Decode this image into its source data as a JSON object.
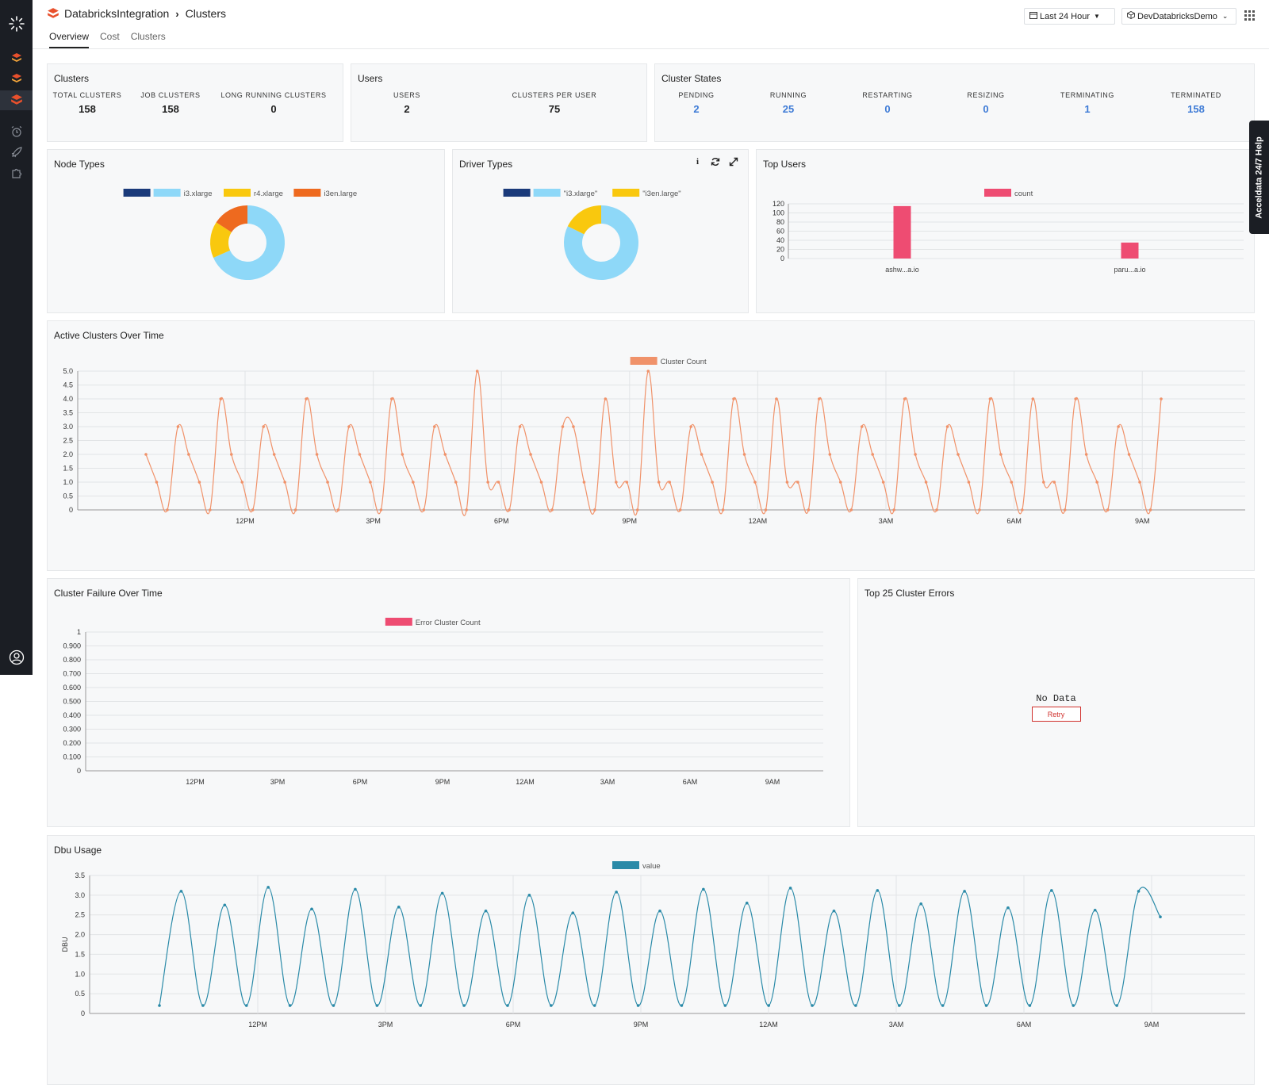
{
  "breadcrumb": {
    "app": "DatabricksIntegration",
    "page": "Clusters"
  },
  "tabs": [
    {
      "label": "Overview"
    },
    {
      "label": "Cost"
    },
    {
      "label": "Clusters"
    }
  ],
  "controls": {
    "time_range": "Last 24 Hour",
    "workspace": "DevDatabricksDemo"
  },
  "help_tab": "Acceldata 24/7 Help",
  "clusters_panel": {
    "title": "Clusters",
    "stats": [
      {
        "label": "TOTAL CLUSTERS",
        "value": "158"
      },
      {
        "label": "JOB CLUSTERS",
        "value": "158"
      },
      {
        "label": "LONG RUNNING CLUSTERS",
        "value": "0"
      }
    ]
  },
  "users_panel": {
    "title": "Users",
    "stats": [
      {
        "label": "USERS",
        "value": "2"
      },
      {
        "label": "CLUSTERS PER USER",
        "value": "75"
      }
    ]
  },
  "states_panel": {
    "title": "Cluster States",
    "stats": [
      {
        "label": "PENDING",
        "value": "2"
      },
      {
        "label": "RUNNING",
        "value": "25"
      },
      {
        "label": "RESTARTING",
        "value": "0"
      },
      {
        "label": "RESIZING",
        "value": "0"
      },
      {
        "label": "TERMINATING",
        "value": "1"
      },
      {
        "label": "TERMINATED",
        "value": "158"
      }
    ]
  },
  "colors": {
    "accent_red": "#e8502c",
    "blue_value": "#3e7bd6",
    "orange_line": "#f0926a",
    "pink": "#ee4c72",
    "teal": "#2a8aa8",
    "navy": "#1a3a7a",
    "light_blue": "#8ed8f8",
    "yellow": "#f9c80e",
    "orange": "#ee6a1f",
    "sidebar": "#1b1e24"
  },
  "icons": {
    "logo": "layers-icon",
    "sidebar": [
      "acceldata-logo-icon",
      "stack-icon",
      "stack-icon",
      "stack-icon",
      "alarm-icon",
      "rocket-icon",
      "puzzle-icon",
      "user-circle-icon"
    ],
    "apps": "grid-icon",
    "calendar": "calendar-icon",
    "cube": "cube-icon",
    "info": "info-icon",
    "refresh": "refresh-icon",
    "expand": "expand-icon"
  },
  "chart_data": [
    {
      "id": "node_types",
      "type": "pie",
      "title": "Node Types",
      "labels": [
        "",
        "i3.xlarge",
        "r4.xlarge",
        "i3en.large"
      ],
      "values": [
        0,
        108,
        25,
        25
      ]
    },
    {
      "id": "driver_types",
      "type": "pie",
      "title": "Driver Types",
      "labels": [
        "",
        "\"i3.xlarge\"",
        "\"i3en.large\""
      ],
      "values": [
        0,
        130,
        28
      ]
    },
    {
      "id": "top_users",
      "type": "bar",
      "title": "Top Users",
      "categories": [
        "ashw...a.io",
        "paru...a.io"
      ],
      "series": [
        {
          "name": "count",
          "values": [
            115,
            35
          ]
        }
      ],
      "ylim": [
        0,
        120
      ],
      "yticks": [
        "0",
        "20",
        "40",
        "60",
        "80",
        "100",
        "120"
      ]
    },
    {
      "id": "active_clusters",
      "type": "line",
      "title": "Active Clusters Over Time",
      "series": [
        {
          "name": "Cluster Count",
          "values": [
            2,
            1,
            0,
            3,
            2,
            1,
            0,
            4,
            2,
            1,
            0,
            3,
            2,
            1,
            0,
            4,
            2,
            1,
            0,
            3,
            2,
            1,
            0,
            4,
            2,
            1,
            0,
            3,
            2,
            1,
            0,
            5,
            1,
            1,
            0,
            3,
            2,
            1,
            0,
            3,
            3,
            1,
            0,
            4,
            1,
            1,
            0,
            5,
            1,
            1,
            0,
            3,
            2,
            1,
            0,
            4,
            2,
            1,
            0,
            4,
            1,
            1,
            0,
            4,
            2,
            1,
            0,
            3,
            2,
            1,
            0,
            4,
            2,
            1,
            0,
            3,
            2,
            1,
            0,
            4,
            2,
            1,
            0,
            4,
            1,
            1,
            0,
            4,
            2,
            1,
            0,
            3,
            2,
            1,
            0,
            4
          ]
        }
      ],
      "x_ticks": [
        "12PM",
        "3PM",
        "6PM",
        "9PM",
        "12AM",
        "3AM",
        "6AM",
        "9AM"
      ],
      "yticks": [
        "0",
        "0.5",
        "1.0",
        "1.5",
        "2.0",
        "2.5",
        "3.0",
        "3.5",
        "4.0",
        "4.5",
        "5.0"
      ],
      "ylim": [
        0,
        5
      ]
    },
    {
      "id": "cluster_failure",
      "type": "line",
      "title": "Cluster Failure Over Time",
      "series": [
        {
          "name": "Error Cluster Count",
          "values": []
        }
      ],
      "x_ticks": [
        "12PM",
        "3PM",
        "6PM",
        "9PM",
        "12AM",
        "3AM",
        "6AM",
        "9AM"
      ],
      "yticks": [
        "0",
        "0.100",
        "0.200",
        "0.300",
        "0.400",
        "0.500",
        "0.600",
        "0.700",
        "0.800",
        "0.900",
        "1"
      ],
      "ylim": [
        0,
        1
      ]
    },
    {
      "id": "dbu_usage",
      "type": "line",
      "title": "Dbu Usage",
      "ylabel": "DBU",
      "series": [
        {
          "name": "value",
          "values": [
            0.2,
            3.1,
            0.2,
            2.75,
            0.2,
            3.2,
            0.2,
            2.65,
            0.2,
            3.15,
            0.2,
            2.7,
            0.2,
            3.05,
            0.2,
            2.6,
            0.2,
            3.0,
            0.2,
            2.55,
            0.2,
            3.08,
            0.2,
            2.6,
            0.2,
            3.15,
            0.2,
            2.8,
            0.2,
            3.18,
            0.2,
            2.6,
            0.2,
            3.12,
            0.2,
            2.78,
            0.2,
            3.1,
            0.2,
            2.68,
            0.2,
            3.12,
            0.2,
            2.62,
            0.2,
            3.1,
            2.45
          ]
        }
      ],
      "x_ticks": [
        "12PM",
        "3PM",
        "6PM",
        "9PM",
        "12AM",
        "3AM",
        "6AM",
        "9AM"
      ],
      "yticks": [
        "0",
        "0.5",
        "1.0",
        "1.5",
        "2.0",
        "2.5",
        "3.0",
        "3.5"
      ],
      "ylim": [
        0,
        3.5
      ]
    }
  ],
  "top_errors": {
    "title": "Top 25 Cluster Errors",
    "empty": "No Data",
    "retry": "Retry"
  }
}
